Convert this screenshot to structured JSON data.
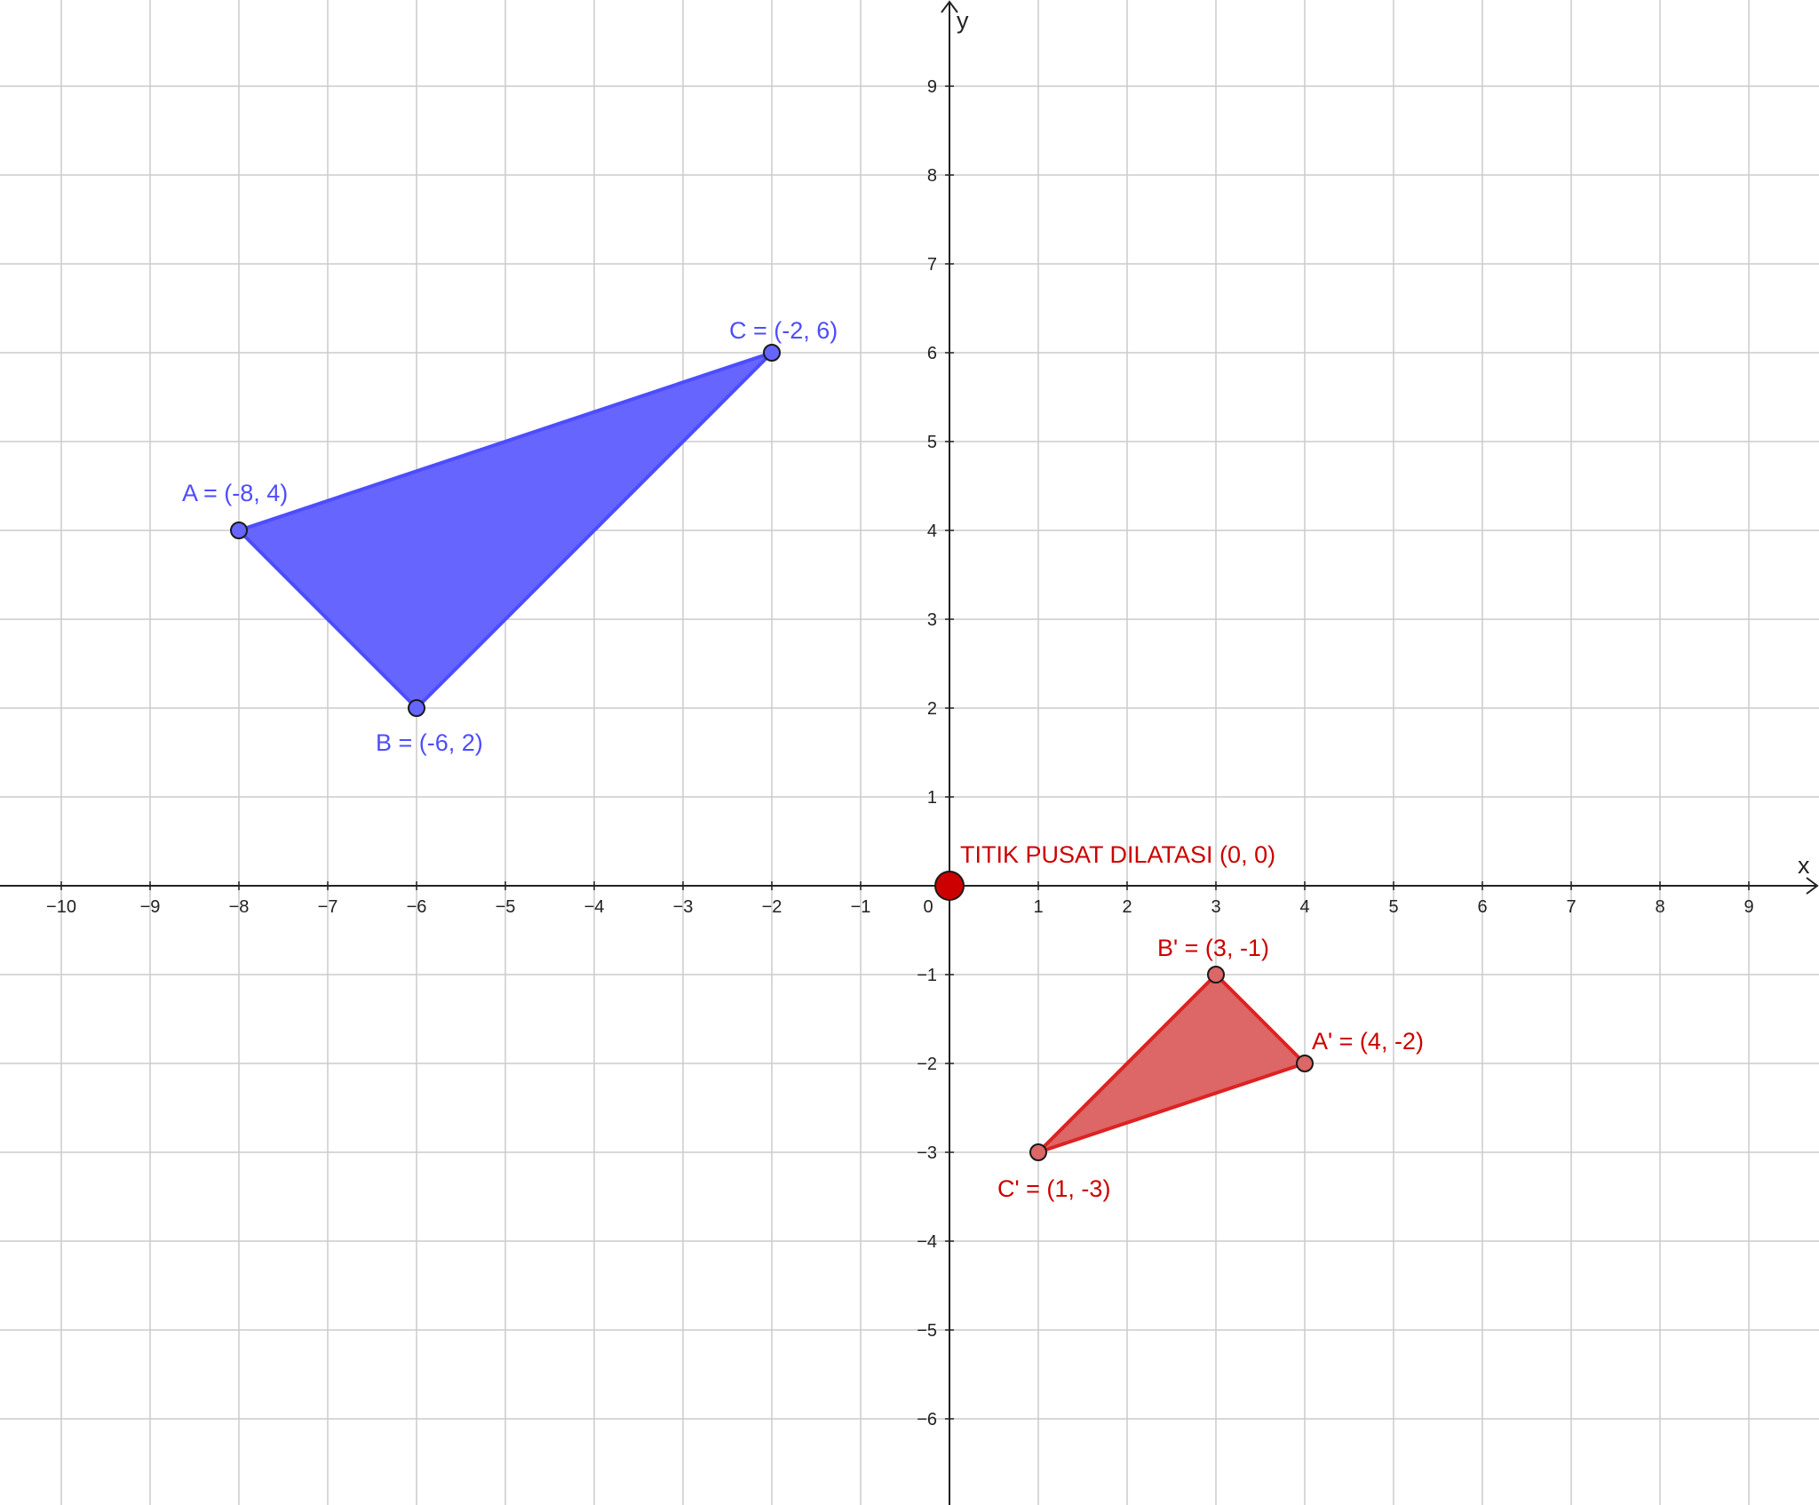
{
  "axes": {
    "x_label": "x",
    "y_label": "y",
    "x_ticks": [
      -10,
      -9,
      -8,
      -7,
      -6,
      -5,
      -4,
      -3,
      -2,
      -1,
      1,
      2,
      3,
      4,
      5,
      6,
      7,
      8,
      9
    ],
    "y_ticks": [
      9,
      8,
      7,
      6,
      5,
      4,
      3,
      2,
      1,
      -1,
      -2,
      -3,
      -4,
      -5,
      -6
    ],
    "origin_label": "0"
  },
  "colors": {
    "blue_fill": "#6666ff",
    "blue_stroke": "#4d4dff",
    "red_fill": "#dd6666",
    "red_stroke": "#dd2222",
    "red_text": "#cc0000",
    "blue_text": "#4d4dff",
    "grid": "#cccccc",
    "axis": "#222222"
  },
  "center": {
    "x": 0,
    "y": 0,
    "label": "TITIK PUSAT DILATASI (0, 0)"
  },
  "triangles": [
    {
      "color": "blue",
      "points": [
        {
          "name": "A",
          "x": -8,
          "y": 4,
          "label": "A = (-8, 4)"
        },
        {
          "name": "B",
          "x": -6,
          "y": 2,
          "label": "B = (-6, 2)"
        },
        {
          "name": "C",
          "x": -2,
          "y": 6,
          "label": "C = (-2, 6)"
        }
      ]
    },
    {
      "color": "red",
      "points": [
        {
          "name": "A'",
          "x": 4,
          "y": -2,
          "label": "A' = (4, -2)"
        },
        {
          "name": "B'",
          "x": 3,
          "y": -1,
          "label": "B' = (3, -1)"
        },
        {
          "name": "C'",
          "x": 1,
          "y": -3,
          "label": "C' = (1, -3)"
        }
      ]
    }
  ]
}
